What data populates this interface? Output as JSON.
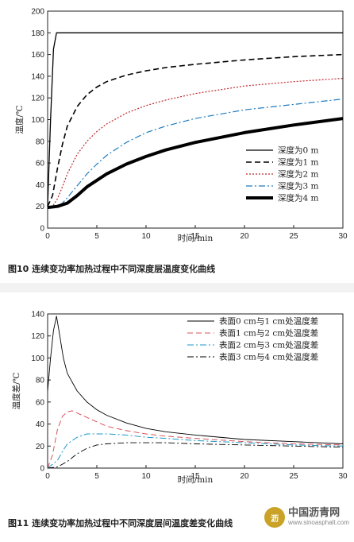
{
  "chart_data": [
    {
      "type": "line",
      "caption": "图10  连续变功率加热过程中不同深度层温度变化曲线",
      "xlabel": "时间/min",
      "ylabel": "温度/℃",
      "xlim": [
        0,
        30
      ],
      "ylim": [
        0,
        200
      ],
      "xticks": [
        0,
        5,
        10,
        15,
        20,
        25,
        30
      ],
      "yticks": [
        0,
        20,
        40,
        60,
        80,
        100,
        120,
        140,
        160,
        180,
        200
      ],
      "legend_position": "right",
      "series": [
        {
          "name": "深度为0 m",
          "color": "#000000",
          "style": "solid",
          "width": 1.3,
          "x": [
            0,
            0.3,
            0.6,
            0.9,
            1,
            2,
            5,
            10,
            15,
            20,
            25,
            30
          ],
          "y": [
            20,
            100,
            165,
            180,
            180,
            180,
            180,
            180,
            180,
            180,
            180,
            180
          ]
        },
        {
          "name": "深度为1 m",
          "color": "#000000",
          "style": "dashed",
          "width": 1.6,
          "x": [
            0,
            0.5,
            1,
            1.5,
            2,
            3,
            4,
            5,
            6,
            8,
            10,
            12,
            15,
            20,
            25,
            30
          ],
          "y": [
            20,
            30,
            55,
            77,
            94,
            112,
            123,
            130,
            135,
            141,
            145,
            148,
            151,
            155,
            158,
            160
          ]
        },
        {
          "name": "深度为2 m",
          "color": "#c0282d",
          "style": "dotted",
          "width": 1.2,
          "x": [
            0,
            0.5,
            1,
            1.5,
            2,
            3,
            4,
            5,
            6,
            8,
            10,
            12,
            15,
            20,
            25,
            30
          ],
          "y": [
            19,
            20,
            27,
            38,
            50,
            68,
            80,
            89,
            96,
            106,
            113,
            118,
            124,
            131,
            135,
            138
          ]
        },
        {
          "name": "深度为3 m",
          "color": "#1f7bbf",
          "style": "dashdot",
          "width": 1.2,
          "x": [
            0,
            1,
            1.5,
            2,
            3,
            4,
            5,
            6,
            8,
            10,
            12,
            15,
            20,
            25,
            30
          ],
          "y": [
            19,
            20,
            23,
            28,
            39,
            50,
            59,
            67,
            79,
            88,
            94,
            101,
            109,
            114,
            119
          ]
        },
        {
          "name": "深度为4 m",
          "color": "#000000",
          "style": "solid",
          "width": 4,
          "x": [
            0,
            1,
            2,
            3,
            4,
            5,
            6,
            8,
            10,
            12,
            15,
            20,
            25,
            30
          ],
          "y": [
            19,
            20,
            23,
            30,
            38,
            44,
            50,
            59,
            66,
            72,
            79,
            88,
            95,
            101
          ]
        }
      ]
    },
    {
      "type": "line",
      "caption": "图11  连续变功率加热过程中不同深度层间温度差变化曲线",
      "xlabel": "时间/min",
      "ylabel": "温度差/℃",
      "xlim": [
        0,
        30
      ],
      "ylim": [
        0,
        140
      ],
      "xticks": [
        0,
        5,
        10,
        15,
        20,
        25,
        30
      ],
      "yticks": [
        0,
        20,
        40,
        60,
        80,
        100,
        120,
        140
      ],
      "legend_position": "top-right",
      "series": [
        {
          "name": "表面0 cm与1 cm处温度差",
          "color": "#000000",
          "style": "solid",
          "width": 0.9,
          "x": [
            0,
            0.3,
            0.6,
            0.9,
            1.2,
            1.6,
            2,
            3,
            4,
            5,
            6,
            8,
            10,
            12,
            15,
            20,
            25,
            30
          ],
          "y": [
            70,
            100,
            125,
            138,
            122,
            100,
            86,
            70,
            60,
            53,
            48,
            41,
            36,
            33,
            30,
            26,
            24,
            22
          ]
        },
        {
          "name": "表面1 cm与2 cm处温度差",
          "color": "#d9535a",
          "style": "dashed",
          "width": 1.0,
          "x": [
            0,
            0.5,
            1,
            1.5,
            2,
            2.5,
            3,
            4,
            5,
            6,
            8,
            10,
            12,
            15,
            20,
            25,
            30
          ],
          "y": [
            0,
            12,
            35,
            47,
            51,
            52,
            50,
            46,
            42,
            38,
            34,
            31,
            29,
            27,
            24,
            22,
            21
          ]
        },
        {
          "name": "表面2 cm与3 cm处温度差",
          "color": "#1f97c9",
          "style": "dashdot",
          "width": 1.0,
          "x": [
            0,
            1,
            1.5,
            2,
            3,
            4,
            5,
            6,
            8,
            10,
            12,
            15,
            20,
            25,
            30
          ],
          "y": [
            0,
            7,
            15,
            22,
            28,
            31,
            31,
            31,
            30,
            28,
            27,
            25,
            23,
            21,
            20
          ]
        },
        {
          "name": "表面3 cm与4 cm处温度差",
          "color": "#000000",
          "style": "dashdot",
          "width": 0.9,
          "x": [
            0,
            1,
            2,
            3,
            4,
            5,
            6,
            8,
            10,
            12,
            15,
            20,
            25,
            30
          ],
          "y": [
            0,
            1,
            6,
            13,
            18,
            21,
            22,
            23,
            23,
            23,
            22,
            21,
            20,
            19
          ]
        }
      ]
    }
  ],
  "watermark": {
    "logo_text": "沥",
    "name": "中国沥青网",
    "url": "www.sinoasphalt.com"
  }
}
